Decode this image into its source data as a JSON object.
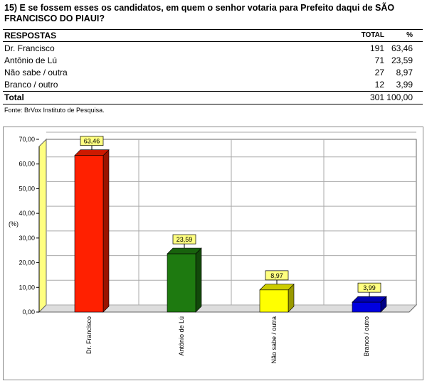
{
  "question": "15) E se fossem esses os candidatos, em quem o senhor votaria para Prefeito daqui de SÃO FRANCISCO DO PIAUI?",
  "table": {
    "header": [
      "RESPOSTAS",
      "TOTAL",
      "%"
    ],
    "rows": [
      [
        "Dr. Francisco",
        "191",
        "63,46"
      ],
      [
        "Antônio de Lú",
        "71",
        "23,59"
      ],
      [
        "Não sabe / outra",
        "27",
        "8,97"
      ],
      [
        "Branco / outro",
        "12",
        "3,99"
      ]
    ],
    "total": [
      "Total",
      "301",
      "100,00"
    ]
  },
  "source": "Fonte: BrVox Instituto de Pesquisa.",
  "chart_data": {
    "type": "bar3d",
    "y_label": "(%)",
    "categories": [
      "Dr. Francisco",
      "Antônio de Lú",
      "Não sabe / outra",
      "Branco / outro"
    ],
    "values": [
      63.46,
      23.59,
      8.97,
      3.99
    ],
    "value_labels": [
      "63,46",
      "23,59",
      "8,97",
      "3,99"
    ],
    "colors": [
      "#ff2000",
      "#1e7a10",
      "#ffff00",
      "#0000e0"
    ],
    "ylim": [
      0,
      70
    ],
    "yticks": [
      {
        "value": 0,
        "label": "0,00"
      },
      {
        "value": 10,
        "label": "10,00"
      },
      {
        "value": 20,
        "label": "20,00"
      },
      {
        "value": 30,
        "label": "30,00"
      },
      {
        "value": 40,
        "label": "40,00"
      },
      {
        "value": 50,
        "label": "50,00"
      },
      {
        "value": 60,
        "label": "60,00"
      },
      {
        "value": 70,
        "label": "70,00"
      }
    ]
  }
}
